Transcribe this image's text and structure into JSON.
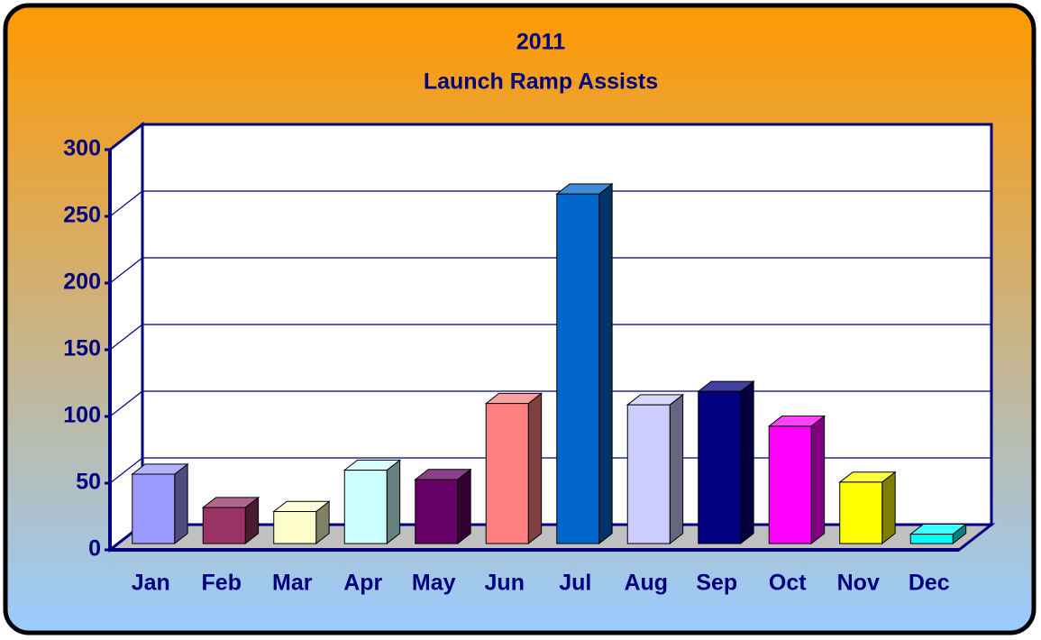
{
  "chart_data": {
    "type": "bar3d",
    "title": "2011",
    "subtitle": "Launch Ramp Assists",
    "categories": [
      "Jan",
      "Feb",
      "Mar",
      "Apr",
      "May",
      "Jun",
      "Jul",
      "Aug",
      "Sep",
      "Oct",
      "Nov",
      "Dec"
    ],
    "values": [
      52,
      27,
      24,
      55,
      48,
      105,
      262,
      104,
      114,
      88,
      46,
      7
    ],
    "colors": [
      "#9999ff",
      "#993366",
      "#ffffcc",
      "#ccffff",
      "#660066",
      "#ff8080",
      "#0066cc",
      "#ccccff",
      "#000080",
      "#ff00ff",
      "#ffff00",
      "#00ffff"
    ],
    "ylim": [
      0,
      300
    ],
    "yticks": [
      0,
      50,
      100,
      150,
      200,
      250,
      300
    ],
    "grid": true
  }
}
